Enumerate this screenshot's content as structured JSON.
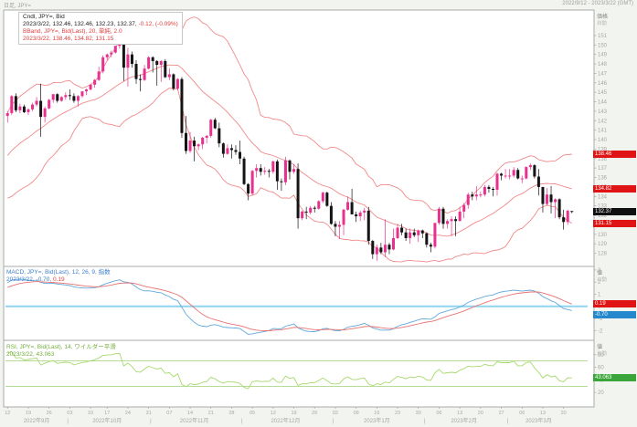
{
  "window": {
    "top_left": "日足, JPY=",
    "top_right": "2022/9/12 - 2023/3/22 (GMT)"
  },
  "main_panel": {
    "legend_line1": "Cndl, JPY=, Bid",
    "legend_line2": "2023/3/22, 132.46, 132.46, 132.23, 132.37, ",
    "legend_line2_change": "-0.12, (-0.09%)",
    "legend_line3": "BBand, JPY=, Bid(Last), 20, 単純, 2.0",
    "legend_line4": "2023/3/22, 138.46, 134.82, 131.15"
  },
  "macd_panel": {
    "legend_line1": "MACD, JPY=, Bid(Last), 12, 26, 9, 指数",
    "legend_line2": "2023/3/22, -0.70, ",
    "legend_line2_signal": "0.19"
  },
  "rsi_panel": {
    "legend_line1": "RSI, JPY=, Bid(Last), 14, ワイルダー平滑",
    "legend_line2": "2023/3/22, 43.063"
  },
  "axes": {
    "price_title": "価格",
    "value_title": "値",
    "auto_label": "自動"
  },
  "badges": [
    {
      "name": "bb-upper-badge",
      "panel": "main",
      "value": 138.46,
      "label": "138.46",
      "color": "red"
    },
    {
      "name": "bb-middle-badge",
      "panel": "main",
      "value": 134.82,
      "label": "134.82",
      "color": "red"
    },
    {
      "name": "last-price-badge",
      "panel": "main",
      "value": 132.37,
      "label": "132.37",
      "color": "black"
    },
    {
      "name": "bb-lower-badge",
      "panel": "main",
      "value": 131.15,
      "label": "131.15",
      "color": "red"
    },
    {
      "name": "macd-signal-badge",
      "panel": "macd",
      "value": 0.19,
      "label": "0.19",
      "color": "red"
    },
    {
      "name": "macd-line-badge",
      "panel": "macd",
      "value": -0.7,
      "label": "-0.70",
      "color": "blue"
    },
    {
      "name": "rsi-value-badge",
      "panel": "rsi",
      "value": 43.063,
      "label": "43.063",
      "color": "green"
    }
  ],
  "colors": {
    "up": "#e8318f",
    "down": "#141414",
    "band": "#f08a8a",
    "macd": "#62a8dc",
    "signal": "#e87272",
    "zero": "#8fd4f2",
    "rsi": "#a8d96e",
    "rsi_band": "#8cc85a",
    "axis_text": "#a8a8a8",
    "frame": "#ababab"
  },
  "chart_data": {
    "type": "candlestick",
    "symbol": "JPY=",
    "interval": "daily",
    "title": "Cndl, JPY=, Bid with BBand(20,2.0), MACD(12,26,9), RSI(14)",
    "price_range_visible": [
      126.8,
      153.4
    ],
    "price_ticks": [
      151,
      150,
      149,
      148,
      147,
      146,
      145,
      144,
      143,
      142,
      141,
      140,
      139,
      138,
      137,
      136,
      135,
      134,
      133,
      132,
      131,
      130,
      129,
      128
    ],
    "rsi_ticks": [
      80,
      60,
      40,
      20
    ],
    "bollinger": {
      "period": 20,
      "stdev": 2
    },
    "macd": {
      "fast": 12,
      "slow": 26,
      "signal": 9
    },
    "rsi": {
      "period": 14,
      "upper_line": 70,
      "lower_line": 30
    },
    "preroll_closes": [
      133.3,
      134.1,
      135.1,
      135.9,
      136.9,
      137.4,
      137.0,
      136.8,
      137.1,
      136.5,
      137.5,
      138.8,
      138.7,
      139.0,
      140.4,
      140.2,
      139.0,
      140.2,
      140.6,
      142.5
    ],
    "candles": [
      [
        "9/12",
        142.5,
        143.0,
        141.8,
        142.8
      ],
      [
        "9/13",
        142.8,
        144.7,
        142.6,
        144.6
      ],
      [
        "9/14",
        144.6,
        144.9,
        142.9,
        143.1
      ],
      [
        "9/15",
        143.1,
        143.8,
        142.8,
        143.5
      ],
      [
        "9/16",
        143.5,
        143.7,
        142.8,
        142.9
      ],
      [
        "9/19",
        142.9,
        143.3,
        142.6,
        143.2
      ],
      [
        "9/20",
        143.2,
        143.9,
        143.0,
        143.7
      ],
      [
        "9/21",
        143.7,
        144.5,
        143.5,
        144.1
      ],
      [
        "9/22",
        144.1,
        145.9,
        140.3,
        142.4
      ],
      [
        "9/23",
        142.4,
        143.5,
        141.8,
        143.3
      ],
      [
        "9/26",
        143.3,
        144.3,
        143.2,
        144.2
      ],
      [
        "9/27",
        144.2,
        144.8,
        143.9,
        144.8
      ],
      [
        "9/28",
        144.8,
        144.9,
        143.9,
        144.1
      ],
      [
        "9/29",
        144.1,
        144.6,
        144.0,
        144.5
      ],
      [
        "9/30",
        144.5,
        145.0,
        144.2,
        144.7
      ],
      [
        "10/3",
        144.7,
        145.3,
        144.2,
        144.6
      ],
      [
        "10/4",
        144.6,
        144.9,
        143.9,
        144.1
      ],
      [
        "10/5",
        144.1,
        144.7,
        143.5,
        144.6
      ],
      [
        "10/6",
        144.6,
        145.1,
        144.4,
        145.1
      ],
      [
        "10/7",
        145.1,
        145.4,
        144.7,
        145.3
      ],
      [
        "10/11",
        145.3,
        145.9,
        145.2,
        145.8
      ],
      [
        "10/12",
        145.8,
        146.4,
        145.5,
        146.3
      ],
      [
        "10/13",
        146.3,
        147.7,
        146.2,
        147.2
      ],
      [
        "10/14",
        147.2,
        148.9,
        147.0,
        148.7
      ],
      [
        "10/17",
        148.7,
        149.1,
        148.4,
        149.0
      ],
      [
        "10/18",
        149.0,
        149.4,
        148.7,
        149.2
      ],
      [
        "10/19",
        149.2,
        149.9,
        149.1,
        149.9
      ],
      [
        "10/20",
        149.9,
        150.3,
        149.6,
        150.1
      ],
      [
        "10/21",
        150.1,
        151.9,
        146.2,
        147.6
      ],
      [
        "10/24",
        147.6,
        149.7,
        145.6,
        149.0
      ],
      [
        "10/25",
        149.0,
        149.3,
        147.6,
        148.0
      ],
      [
        "10/26",
        148.0,
        148.4,
        145.9,
        146.4
      ],
      [
        "10/27",
        146.4,
        146.9,
        145.1,
        146.3
      ],
      [
        "10/28",
        146.3,
        147.9,
        146.2,
        147.5
      ],
      [
        "10/31",
        147.5,
        148.8,
        147.4,
        148.7
      ],
      [
        "11/1",
        148.7,
        148.8,
        147.1,
        148.3
      ],
      [
        "11/2",
        148.3,
        148.4,
        145.7,
        147.9
      ],
      [
        "11/3",
        147.9,
        148.4,
        146.1,
        148.3
      ],
      [
        "11/4",
        148.3,
        148.5,
        146.5,
        146.6
      ],
      [
        "11/7",
        146.6,
        147.5,
        146.3,
        146.9
      ],
      [
        "11/8",
        146.9,
        147.0,
        145.2,
        145.4
      ],
      [
        "11/9",
        145.4,
        146.5,
        145.2,
        146.4
      ],
      [
        "11/10",
        146.4,
        146.6,
        140.2,
        140.7
      ],
      [
        "11/11",
        140.7,
        142.5,
        138.5,
        138.8
      ],
      [
        "11/14",
        138.8,
        140.8,
        138.6,
        139.9
      ],
      [
        "11/15",
        139.9,
        140.3,
        137.7,
        139.3
      ],
      [
        "11/16",
        139.3,
        139.6,
        138.9,
        139.5
      ],
      [
        "11/17",
        139.5,
        140.3,
        139.0,
        140.2
      ],
      [
        "11/18",
        140.2,
        140.5,
        139.6,
        140.4
      ],
      [
        "11/21",
        140.4,
        142.2,
        140.2,
        142.1
      ],
      [
        "11/22",
        142.1,
        142.3,
        141.1,
        141.2
      ],
      [
        "11/23",
        141.2,
        141.8,
        139.2,
        139.6
      ],
      [
        "11/24",
        139.6,
        139.7,
        138.1,
        138.5
      ],
      [
        "11/25",
        138.5,
        139.5,
        138.4,
        139.1
      ],
      [
        "11/28",
        139.1,
        139.5,
        138.0,
        138.9
      ],
      [
        "11/29",
        138.9,
        139.4,
        138.4,
        138.7
      ],
      [
        "11/30",
        138.7,
        139.9,
        137.4,
        138.0
      ],
      [
        "12/1",
        138.0,
        138.2,
        135.2,
        135.3
      ],
      [
        "12/2",
        135.3,
        135.4,
        133.6,
        134.3
      ],
      [
        "12/5",
        134.3,
        136.8,
        134.1,
        136.7
      ],
      [
        "12/6",
        136.7,
        137.4,
        136.0,
        137.0
      ],
      [
        "12/7",
        137.0,
        137.4,
        136.2,
        136.6
      ],
      [
        "12/8",
        136.6,
        137.1,
        136.3,
        136.7
      ],
      [
        "12/9",
        136.7,
        136.9,
        136.0,
        136.6
      ],
      [
        "12/12",
        136.6,
        137.8,
        136.4,
        137.7
      ],
      [
        "12/13",
        137.7,
        137.9,
        134.7,
        135.6
      ],
      [
        "12/14",
        135.6,
        135.9,
        134.6,
        135.5
      ],
      [
        "12/15",
        135.5,
        138.2,
        135.2,
        137.8
      ],
      [
        "12/16",
        137.8,
        137.9,
        135.8,
        136.6
      ],
      [
        "12/19",
        136.6,
        137.4,
        136.4,
        136.9
      ],
      [
        "12/20",
        136.9,
        137.5,
        130.6,
        131.7
      ],
      [
        "12/21",
        131.7,
        132.5,
        131.5,
        132.4
      ],
      [
        "12/22",
        132.4,
        132.9,
        131.6,
        132.3
      ],
      [
        "12/23",
        132.3,
        133.0,
        132.1,
        132.8
      ],
      [
        "12/26",
        132.8,
        133.0,
        132.3,
        132.7
      ],
      [
        "12/27",
        132.7,
        133.6,
        132.6,
        133.5
      ],
      [
        "12/28",
        133.5,
        134.5,
        133.3,
        134.4
      ],
      [
        "12/29",
        134.4,
        134.5,
        132.9,
        133.0
      ],
      [
        "12/30",
        133.0,
        133.4,
        131.0,
        131.1
      ],
      [
        "1/2",
        131.1,
        131.4,
        129.8,
        130.8
      ],
      [
        "1/3",
        130.8,
        131.4,
        129.5,
        131.0
      ],
      [
        "1/4",
        131.0,
        132.7,
        129.9,
        132.6
      ],
      [
        "1/5",
        132.6,
        134.0,
        132.5,
        133.4
      ],
      [
        "1/6",
        133.4,
        134.8,
        132.1,
        132.1
      ],
      [
        "1/9",
        132.1,
        132.4,
        131.3,
        131.9
      ],
      [
        "1/10",
        131.9,
        132.5,
        131.4,
        132.3
      ],
      [
        "1/11",
        132.3,
        132.8,
        131.5,
        132.5
      ],
      [
        "1/12",
        132.5,
        132.9,
        128.9,
        129.3
      ],
      [
        "1/13",
        129.3,
        129.4,
        127.4,
        127.9
      ],
      [
        "1/16",
        127.9,
        128.9,
        127.2,
        128.6
      ],
      [
        "1/17",
        128.6,
        129.1,
        127.9,
        128.1
      ],
      [
        "1/18",
        128.1,
        131.6,
        127.6,
        128.9
      ],
      [
        "1/19",
        128.9,
        129.1,
        127.9,
        128.4
      ],
      [
        "1/20",
        128.4,
        130.6,
        128.3,
        129.6
      ],
      [
        "1/23",
        129.6,
        131.1,
        129.5,
        130.7
      ],
      [
        "1/24",
        130.7,
        131.1,
        129.9,
        130.2
      ],
      [
        "1/25",
        130.2,
        130.6,
        129.3,
        129.6
      ],
      [
        "1/26",
        129.6,
        130.6,
        129.0,
        130.2
      ],
      [
        "1/27",
        130.2,
        130.6,
        129.7,
        129.9
      ],
      [
        "1/30",
        129.9,
        130.5,
        129.2,
        130.4
      ],
      [
        "1/31",
        130.4,
        130.5,
        129.6,
        130.1
      ],
      [
        "2/1",
        130.1,
        130.2,
        128.6,
        128.9
      ],
      [
        "2/2",
        128.9,
        129.1,
        128.1,
        128.7
      ],
      [
        "2/3",
        128.7,
        131.2,
        128.5,
        131.2
      ],
      [
        "2/6",
        131.2,
        132.9,
        131.0,
        132.7
      ],
      [
        "2/7",
        132.7,
        132.9,
        130.6,
        131.1
      ],
      [
        "2/8",
        131.1,
        131.6,
        130.6,
        131.4
      ],
      [
        "2/9",
        131.4,
        131.9,
        129.8,
        131.6
      ],
      [
        "2/10",
        131.6,
        131.9,
        129.8,
        131.4
      ],
      [
        "2/13",
        131.4,
        132.9,
        131.4,
        132.4
      ],
      [
        "2/14",
        132.4,
        133.3,
        131.7,
        133.1
      ],
      [
        "2/15",
        133.1,
        134.4,
        132.7,
        134.2
      ],
      [
        "2/16",
        134.2,
        134.5,
        133.6,
        134.0
      ],
      [
        "2/17",
        134.0,
        135.1,
        133.6,
        134.2
      ],
      [
        "2/20",
        134.2,
        134.5,
        133.9,
        134.2
      ],
      [
        "2/21",
        134.2,
        135.2,
        134.0,
        135.0
      ],
      [
        "2/22",
        135.0,
        135.2,
        134.4,
        134.8
      ],
      [
        "2/23",
        134.8,
        135.0,
        134.0,
        134.7
      ],
      [
        "2/24",
        134.7,
        136.5,
        134.1,
        136.4
      ],
      [
        "2/27",
        136.4,
        136.5,
        135.7,
        136.2
      ],
      [
        "2/28",
        136.2,
        136.9,
        135.9,
        136.2
      ],
      [
        "3/1",
        136.2,
        136.9,
        135.8,
        136.2
      ],
      [
        "3/2",
        136.2,
        137.1,
        136.0,
        136.8
      ],
      [
        "3/3",
        136.8,
        137.0,
        135.8,
        135.9
      ],
      [
        "3/6",
        135.9,
        136.2,
        135.4,
        135.9
      ],
      [
        "3/7",
        135.9,
        137.2,
        135.8,
        137.1
      ],
      [
        "3/8",
        137.1,
        137.5,
        136.8,
        137.3
      ],
      [
        "3/9",
        137.3,
        137.4,
        135.9,
        136.1
      ],
      [
        "3/10",
        136.1,
        136.9,
        134.1,
        135.0
      ],
      [
        "3/13",
        135.0,
        135.0,
        132.3,
        133.2
      ],
      [
        "3/14",
        133.2,
        134.9,
        133.0,
        134.2
      ],
      [
        "3/15",
        134.2,
        135.1,
        132.2,
        133.4
      ],
      [
        "3/16",
        133.4,
        133.8,
        131.7,
        133.7
      ],
      [
        "3/17",
        133.7,
        133.8,
        131.6,
        131.8
      ],
      [
        "3/20",
        131.8,
        132.6,
        130.5,
        131.3
      ],
      [
        "3/21",
        131.3,
        132.6,
        131.0,
        132.5
      ],
      [
        "3/22",
        132.46,
        132.46,
        132.23,
        132.37
      ]
    ],
    "x_ticks": [
      {
        "i": 0,
        "label": "12"
      },
      {
        "i": 5,
        "label": "19"
      },
      {
        "i": 10,
        "label": "26"
      },
      {
        "i": 15,
        "label": "03"
      },
      {
        "i": 20,
        "label": "10"
      },
      {
        "i": 24,
        "label": "17"
      },
      {
        "i": 29,
        "label": "24"
      },
      {
        "i": 34,
        "label": "31"
      },
      {
        "i": 39,
        "label": "07"
      },
      {
        "i": 44,
        "label": "14"
      },
      {
        "i": 49,
        "label": "21"
      },
      {
        "i": 54,
        "label": "28"
      },
      {
        "i": 59,
        "label": "05"
      },
      {
        "i": 64,
        "label": "12"
      },
      {
        "i": 69,
        "label": "19"
      },
      {
        "i": 74,
        "label": "26"
      },
      {
        "i": 79,
        "label": "02"
      },
      {
        "i": 84,
        "label": "09"
      },
      {
        "i": 89,
        "label": "16"
      },
      {
        "i": 94,
        "label": "23"
      },
      {
        "i": 99,
        "label": "30"
      },
      {
        "i": 104,
        "label": "06"
      },
      {
        "i": 109,
        "label": "13"
      },
      {
        "i": 114,
        "label": "20"
      },
      {
        "i": 119,
        "label": "27"
      },
      {
        "i": 124,
        "label": "06"
      },
      {
        "i": 129,
        "label": "13"
      },
      {
        "i": 134,
        "label": "20"
      }
    ],
    "month_labels": [
      {
        "i": 7,
        "label": "2022年9月"
      },
      {
        "i": 24,
        "label": "2022年10月"
      },
      {
        "i": 45,
        "label": "2022年11月"
      },
      {
        "i": 67,
        "label": "2022年12月"
      },
      {
        "i": 89,
        "label": "2023年1月"
      },
      {
        "i": 110,
        "label": "2023年2月"
      },
      {
        "i": 128,
        "label": "2023年3月"
      }
    ],
    "month_dividers": [
      15,
      35,
      57,
      79,
      101,
      121
    ]
  }
}
